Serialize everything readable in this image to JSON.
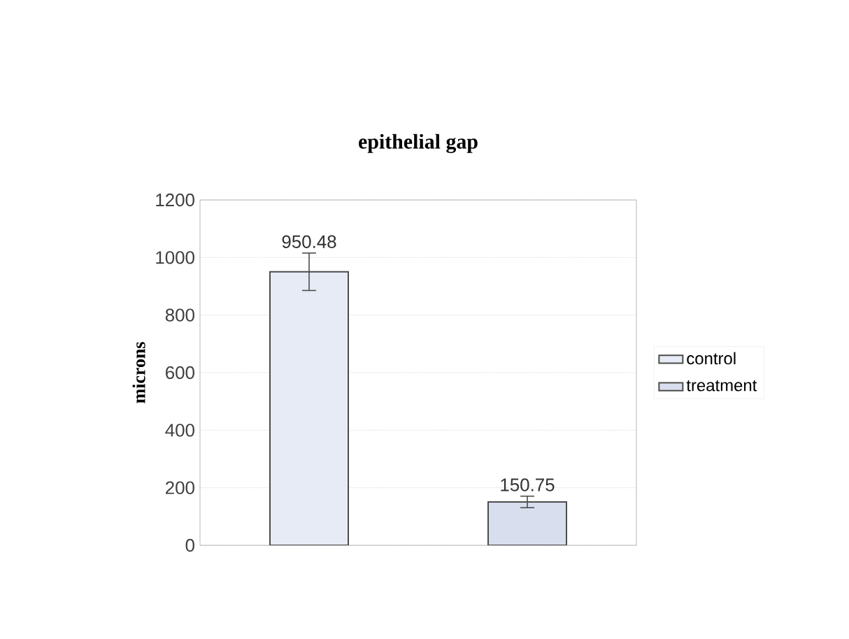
{
  "chart_data": {
    "type": "bar",
    "title": "epithelial gap",
    "ylabel": "microns",
    "categories": [
      null,
      null
    ],
    "series": [
      {
        "name": "control",
        "color": "#e6ebf5",
        "values": [
          950.48,
          null
        ],
        "errors": [
          65,
          null
        ]
      },
      {
        "name": "treatment",
        "color": "#d8deee",
        "values": [
          null,
          150.75
        ],
        "errors": [
          null,
          20
        ]
      }
    ],
    "ylim": [
      0,
      1200
    ],
    "yticks": [
      0,
      200,
      400,
      600,
      800,
      1000,
      1200
    ],
    "grid": "y",
    "legend": "right",
    "data_labels": true
  }
}
